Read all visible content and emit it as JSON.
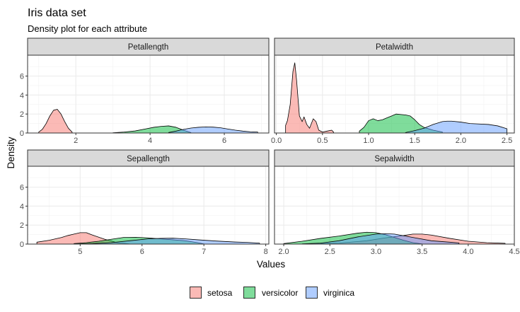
{
  "chart_data": {
    "type": "area",
    "title": "Iris data set",
    "subtitle": "Density plot for each attribute",
    "xlabel": "Values",
    "ylabel": "Density",
    "ylim": [
      0,
      8.2
    ],
    "yticks": [
      0,
      2,
      4,
      6
    ],
    "legend": {
      "position": "bottom",
      "entries": [
        {
          "name": "setosa",
          "color": "#F8766D"
        },
        {
          "name": "versicolor",
          "color": "#00BA38"
        },
        {
          "name": "virginica",
          "color": "#619CFF"
        }
      ]
    },
    "fill_alpha": 0.5,
    "grid": true,
    "facets": [
      {
        "name": "Petallength",
        "xlim": [
          0.7,
          7.2
        ],
        "xticks": [
          2,
          4,
          6
        ],
        "series": [
          {
            "name": "setosa",
            "x": [
              1.0,
              1.1,
              1.2,
              1.3,
              1.4,
              1.5,
              1.6,
              1.7,
              1.8,
              1.9
            ],
            "y": [
              0.1,
              0.4,
              1.0,
              1.8,
              2.4,
              2.5,
              2.0,
              1.2,
              0.5,
              0.1
            ]
          },
          {
            "name": "versicolor",
            "x": [
              3.0,
              3.3,
              3.6,
              3.9,
              4.1,
              4.3,
              4.5,
              4.7,
              4.9,
              5.1
            ],
            "y": [
              0.03,
              0.1,
              0.22,
              0.45,
              0.6,
              0.7,
              0.75,
              0.6,
              0.3,
              0.05
            ]
          },
          {
            "name": "virginica",
            "x": [
              4.5,
              4.7,
              4.9,
              5.1,
              5.3,
              5.5,
              5.7,
              5.9,
              6.1,
              6.3,
              6.5,
              6.7,
              6.9
            ],
            "y": [
              0.05,
              0.2,
              0.38,
              0.52,
              0.6,
              0.64,
              0.62,
              0.55,
              0.42,
              0.3,
              0.2,
              0.13,
              0.1
            ]
          }
        ]
      },
      {
        "name": "Petalwidth",
        "xlim": [
          -0.02,
          2.58
        ],
        "xticks": [
          0.0,
          0.5,
          1.0,
          1.5,
          2.0,
          2.5
        ],
        "series": [
          {
            "name": "setosa",
            "x": [
              0.1,
              0.12,
              0.15,
              0.18,
              0.2,
              0.22,
              0.25,
              0.28,
              0.3,
              0.33,
              0.36,
              0.4,
              0.43,
              0.46,
              0.5,
              0.55,
              0.6,
              0.62
            ],
            "y": [
              0.8,
              1.3,
              3.0,
              6.5,
              7.4,
              5.5,
              1.8,
              1.2,
              1.7,
              0.9,
              0.5,
              1.5,
              1.2,
              0.3,
              0.1,
              0.2,
              0.3,
              0.1
            ]
          },
          {
            "name": "versicolor",
            "x": [
              0.9,
              0.95,
              1.0,
              1.05,
              1.1,
              1.15,
              1.2,
              1.25,
              1.3,
              1.35,
              1.4,
              1.45,
              1.5,
              1.55,
              1.6,
              1.7,
              1.8
            ],
            "y": [
              0.2,
              0.6,
              1.3,
              1.5,
              1.3,
              1.4,
              1.6,
              1.8,
              2.0,
              1.95,
              1.9,
              1.8,
              1.4,
              0.9,
              0.6,
              0.3,
              0.1
            ]
          },
          {
            "name": "virginica",
            "x": [
              1.4,
              1.5,
              1.6,
              1.7,
              1.8,
              1.85,
              1.9,
              2.0,
              2.1,
              2.2,
              2.3,
              2.4,
              2.5
            ],
            "y": [
              0.05,
              0.25,
              0.5,
              0.9,
              1.2,
              1.25,
              1.25,
              1.15,
              1.0,
              0.95,
              0.9,
              0.75,
              0.45
            ]
          }
        ]
      },
      {
        "name": "Sepallength",
        "xlim": [
          4.15,
          8.05
        ],
        "xticks": [
          5,
          6,
          7,
          8
        ],
        "series": [
          {
            "name": "setosa",
            "x": [
              4.3,
              4.5,
              4.7,
              4.8,
              4.9,
              5.0,
              5.1,
              5.2,
              5.4,
              5.6,
              5.8
            ],
            "y": [
              0.2,
              0.4,
              0.7,
              0.9,
              1.05,
              1.2,
              1.2,
              0.95,
              0.5,
              0.15,
              0.02
            ]
          },
          {
            "name": "versicolor",
            "x": [
              4.9,
              5.1,
              5.3,
              5.5,
              5.7,
              5.9,
              6.1,
              6.3,
              6.5,
              6.7,
              6.9,
              7.0
            ],
            "y": [
              0.05,
              0.15,
              0.3,
              0.5,
              0.7,
              0.72,
              0.65,
              0.55,
              0.45,
              0.35,
              0.15,
              0.02
            ]
          },
          {
            "name": "virginica",
            "x": [
              4.9,
              5.2,
              5.5,
              5.8,
              6.1,
              6.3,
              6.5,
              6.7,
              6.9,
              7.2,
              7.5,
              7.7,
              7.9
            ],
            "y": [
              0.02,
              0.05,
              0.15,
              0.35,
              0.55,
              0.6,
              0.62,
              0.55,
              0.45,
              0.32,
              0.22,
              0.18,
              0.1
            ]
          }
        ]
      },
      {
        "name": "Sepalwidth",
        "xlim": [
          1.9,
          4.5
        ],
        "xticks": [
          2.0,
          2.5,
          3.0,
          3.5,
          4.0,
          4.5
        ],
        "series": [
          {
            "name": "setosa",
            "x": [
              2.3,
              2.6,
              2.9,
              3.1,
              3.3,
              3.4,
              3.5,
              3.6,
              3.8,
              4.0,
              4.2,
              4.4
            ],
            "y": [
              0.02,
              0.1,
              0.35,
              0.65,
              0.9,
              1.05,
              1.05,
              0.95,
              0.6,
              0.3,
              0.15,
              0.08
            ]
          },
          {
            "name": "versicolor",
            "x": [
              2.0,
              2.2,
              2.4,
              2.6,
              2.8,
              2.9,
              3.0,
              3.1,
              3.2,
              3.3,
              3.4,
              3.5
            ],
            "y": [
              0.05,
              0.3,
              0.6,
              0.85,
              1.15,
              1.25,
              1.2,
              1.0,
              0.7,
              0.4,
              0.15,
              0.02
            ]
          },
          {
            "name": "virginica",
            "x": [
              2.2,
              2.4,
              2.6,
              2.8,
              3.0,
              3.1,
              3.2,
              3.4,
              3.6,
              3.8,
              3.9
            ],
            "y": [
              0.03,
              0.1,
              0.35,
              0.75,
              1.05,
              1.1,
              1.05,
              0.7,
              0.35,
              0.2,
              0.12
            ]
          }
        ]
      }
    ]
  }
}
